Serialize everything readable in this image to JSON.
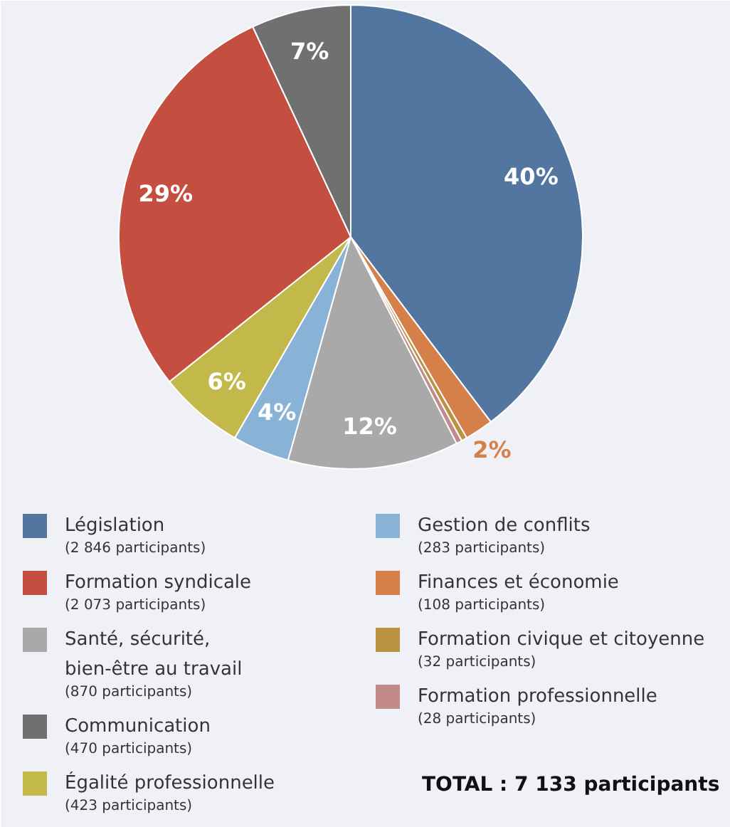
{
  "chart_data": {
    "type": "pie",
    "categories": [
      "Législation\n(2 846 participants)",
      "Finances et économie\n(108 participants)",
      "Formation civique et citoyenne\n(32 participants)",
      "Formation professionnelle\n(28 participants)",
      "Santé, sécurité,\nbien-être au travail\n(870 participants)",
      "Gestion de conflits\n(283 participants)",
      "Égalité professionnelle\n(423 participants)",
      "Formation syndicale\n(2 073 participants)",
      "Communication\n(470 participants)"
    ],
    "values": [
      40,
      2,
      0.4,
      0.4,
      12,
      4,
      6,
      29,
      7
    ],
    "colors": [
      "#5276a0",
      "#d5804a",
      "#bb9240",
      "#c28a89",
      "#a9a9a9",
      "#88b2d6",
      "#c3b84a",
      "#c44e3f",
      "#707070"
    ],
    "value_labels": [
      "40%",
      "2%",
      null,
      null,
      "12%",
      "4%",
      "6%",
      "29%",
      "7%"
    ],
    "annotations": [
      "TOTAL :  7 133 participants"
    ],
    "legend": "bottom"
  }
}
